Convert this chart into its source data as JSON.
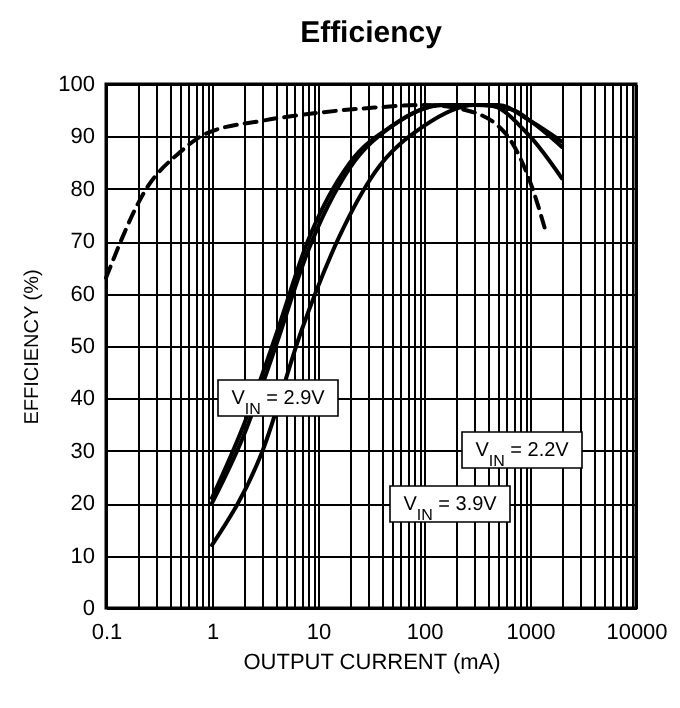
{
  "chart_data": {
    "type": "line",
    "title": "Efficiency",
    "xlabel": "OUTPUT CURRENT (mA)",
    "ylabel": "EFFICIENCY (%)",
    "log": "x",
    "grid": true,
    "legend": false,
    "marker": "none",
    "xlim": [
      0.1,
      10000
    ],
    "xticks": [
      0.1,
      1,
      10,
      100,
      1000,
      10000
    ],
    "ylim": [
      0,
      100
    ],
    "yticks": [
      0,
      10,
      20,
      30,
      40,
      50,
      60,
      70,
      80,
      90,
      100
    ],
    "series": [
      {
        "color": "#000000",
        "line_style": "dashed",
        "x": [
          0.1,
          0.24,
          0.5,
          0.87,
          3,
          10,
          34,
          100,
          250,
          590,
          1100,
          1400
        ],
        "values": [
          63,
          80,
          87,
          90.5,
          93,
          94.5,
          95.5,
          96,
          95,
          90.5,
          79,
          72
        ]
      },
      {
        "name": "V$_{IN}$ = 2.9V",
        "color": "#000000",
        "line_style": "solid",
        "x": [
          1,
          2,
          4,
          8,
          20,
          50,
          150,
          500,
          1000,
          2000
        ],
        "values": [
          21,
          35,
          52,
          70,
          85,
          92,
          96,
          96,
          93,
          89
        ]
      },
      {
        "name": "V$_{IN}$ = 2.2V",
        "color": "#000000",
        "line_style": "solid",
        "x": [
          1,
          2,
          4,
          8,
          20,
          50,
          150,
          400,
          1000,
          2000
        ],
        "values": [
          20,
          33,
          50,
          68,
          84,
          92,
          96,
          96,
          90,
          82
        ]
      },
      {
        "name": "V$_{IN}$ = 3.9V",
        "color": "#000000",
        "line_style": "solid",
        "x": [
          1,
          3,
          7,
          16,
          34,
          100,
          300,
          700,
          1000,
          2000
        ],
        "values": [
          12,
          30,
          53,
          71,
          83,
          92,
          96,
          95,
          93,
          88
        ]
      }
    ]
  }
}
